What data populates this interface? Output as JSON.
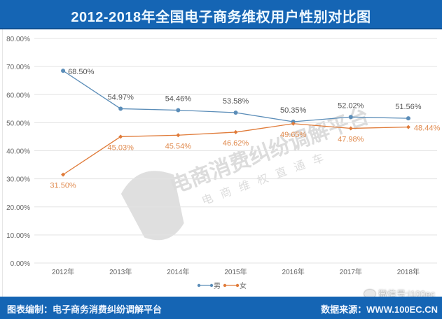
{
  "header": {
    "title": "2012-2018年全国电子商务维权用户性别对比图"
  },
  "footer": {
    "left": "图表编制：电子商务消费纠纷调解平台",
    "right": "数据来源：WWW.100EC.CN",
    "wechat": "微信号:i100ec"
  },
  "watermark": {
    "line1": "电商消费纠纷调解平台",
    "line2": "电商维权直通车"
  },
  "colors": {
    "male": "#5b8db8",
    "female": "#e07b39",
    "header": "#1565b4",
    "grid": "#e3e3e3"
  },
  "chart_data": {
    "type": "line",
    "title": "2012-2018年全国电子商务维权用户性别对比图",
    "xlabel": "",
    "ylabel": "",
    "categories": [
      "2012年",
      "2013年",
      "2014年",
      "2015年",
      "2016年",
      "2017年",
      "2018年"
    ],
    "series": [
      {
        "name": "男",
        "values": [
          68.5,
          54.97,
          54.46,
          53.58,
          50.35,
          52.02,
          51.56
        ],
        "labels": [
          "68.50%",
          "54.97%",
          "54.46%",
          "53.58%",
          "50.35%",
          "52.02%",
          "51.56%"
        ],
        "color": "#5b8db8"
      },
      {
        "name": "女",
        "values": [
          31.5,
          45.03,
          45.54,
          46.62,
          49.65,
          47.98,
          48.44
        ],
        "labels": [
          "31.50%",
          "45.03%",
          "45.54%",
          "46.62%",
          "49.65%",
          "47.98%",
          "48.44%"
        ],
        "color": "#e07b39"
      }
    ],
    "yticks": [
      "0.00%",
      "10.00%",
      "20.00%",
      "30.00%",
      "40.00%",
      "50.00%",
      "60.00%",
      "70.00%",
      "80.00%"
    ],
    "ylim": [
      0,
      80
    ],
    "grid": true,
    "legend_position": "bottom"
  }
}
